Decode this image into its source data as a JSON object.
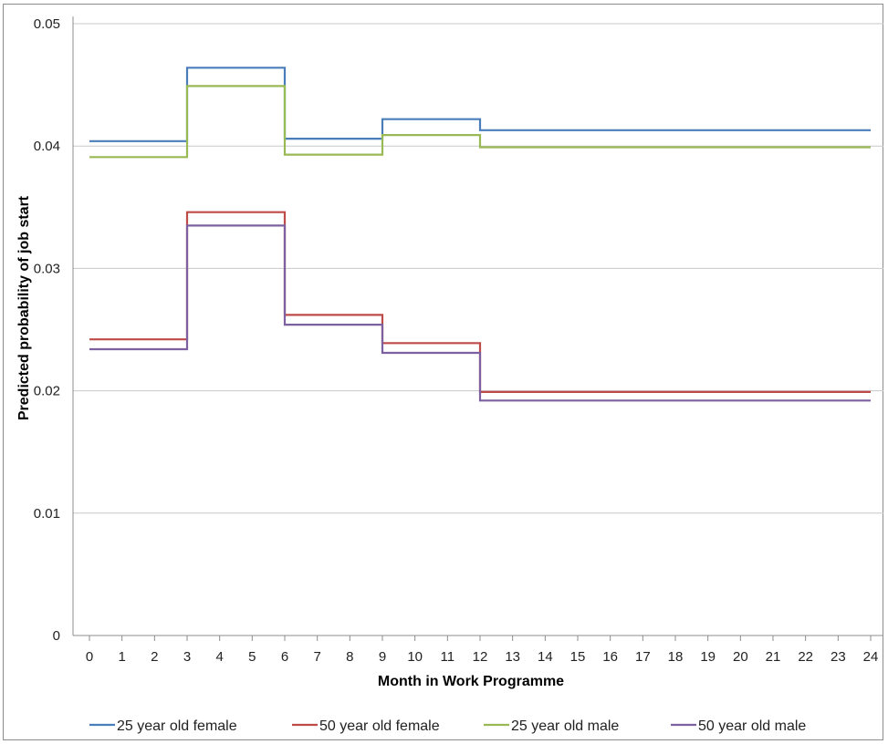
{
  "chart_data": {
    "type": "line",
    "step": true,
    "title": "",
    "xlabel": "Month in Work Programme",
    "ylabel": "Predicted probability of job start",
    "x_ticks": [
      "0",
      "1",
      "2",
      "3",
      "4",
      "5",
      "6",
      "7",
      "8",
      "9",
      "10",
      "11",
      "12",
      "13",
      "14",
      "15",
      "16",
      "17",
      "18",
      "19",
      "20",
      "21",
      "22",
      "23",
      "24"
    ],
    "y_ticks": [
      "0",
      "0.01",
      "0.02",
      "0.03",
      "0.04",
      "0.05"
    ],
    "xlim": [
      0,
      24
    ],
    "ylim": [
      0,
      0.05
    ],
    "grid": "horizontal",
    "legend_position": "bottom",
    "series": [
      {
        "name": "25 year old female",
        "color": "#4a7ebb",
        "segments": [
          {
            "x_start": 0,
            "x_end": 3,
            "value": 0.0404
          },
          {
            "x_start": 3,
            "x_end": 6,
            "value": 0.0464
          },
          {
            "x_start": 6,
            "x_end": 9,
            "value": 0.0406
          },
          {
            "x_start": 9,
            "x_end": 12,
            "value": 0.0422
          },
          {
            "x_start": 12,
            "x_end": 24,
            "value": 0.0413
          }
        ]
      },
      {
        "name": "50 year old female",
        "color": "#be4b48",
        "segments": [
          {
            "x_start": 0,
            "x_end": 3,
            "value": 0.0242
          },
          {
            "x_start": 3,
            "x_end": 6,
            "value": 0.0346
          },
          {
            "x_start": 6,
            "x_end": 9,
            "value": 0.0262
          },
          {
            "x_start": 9,
            "x_end": 12,
            "value": 0.0239
          },
          {
            "x_start": 12,
            "x_end": 24,
            "value": 0.0199
          }
        ]
      },
      {
        "name": "25 year old male",
        "color": "#98b954",
        "segments": [
          {
            "x_start": 0,
            "x_end": 3,
            "value": 0.0391
          },
          {
            "x_start": 3,
            "x_end": 6,
            "value": 0.0449
          },
          {
            "x_start": 6,
            "x_end": 9,
            "value": 0.0393
          },
          {
            "x_start": 9,
            "x_end": 12,
            "value": 0.0409
          },
          {
            "x_start": 12,
            "x_end": 24,
            "value": 0.0399
          }
        ]
      },
      {
        "name": "50 year old male",
        "color": "#7d60a0",
        "segments": [
          {
            "x_start": 0,
            "x_end": 3,
            "value": 0.0234
          },
          {
            "x_start": 3,
            "x_end": 6,
            "value": 0.0335
          },
          {
            "x_start": 6,
            "x_end": 9,
            "value": 0.0254
          },
          {
            "x_start": 9,
            "x_end": 12,
            "value": 0.0231
          },
          {
            "x_start": 12,
            "x_end": 24,
            "value": 0.0192
          }
        ]
      }
    ]
  }
}
